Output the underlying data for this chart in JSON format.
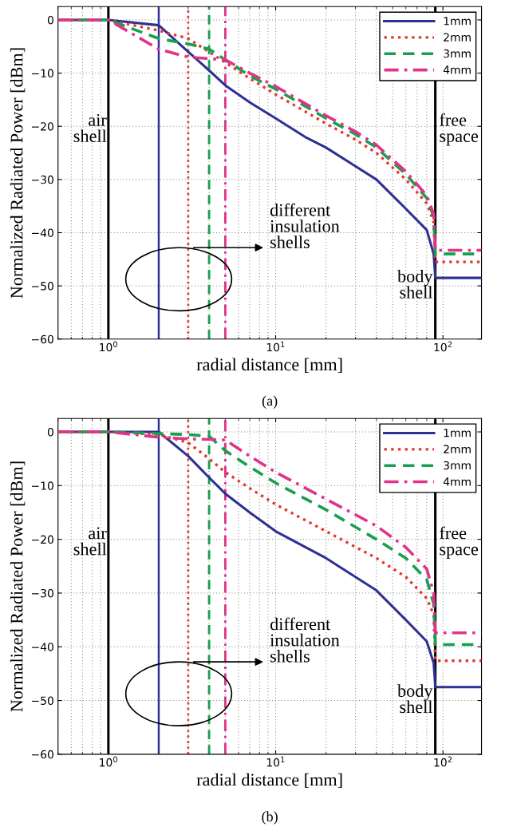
{
  "chart_data": [
    {
      "type": "line",
      "xlabel": "radial distance [mm]",
      "ylabel": "Normalized Radiated Power [dBm]",
      "log": "x",
      "grid": true,
      "legend": "top right",
      "xlim": [
        0.5,
        170
      ],
      "xticks": [
        {
          "value": 1,
          "label": "10$^{0}$"
        },
        {
          "value": 10,
          "label": "10$^{1}$"
        },
        {
          "value": 100,
          "label": "10$^{2}$"
        }
      ],
      "ylim": [
        -60,
        2.5
      ],
      "yticks": [
        -60,
        -50,
        -40,
        -30,
        -20,
        -10,
        0
      ],
      "series": [
        {
          "name": "1mm",
          "color": "#2e3192",
          "line_style": "solid",
          "x": [
            0.5,
            1,
            2,
            3,
            4,
            5,
            7,
            10,
            15,
            20,
            30,
            40,
            60,
            80,
            88,
            90,
            170
          ],
          "values": [
            0,
            0,
            -1,
            -6,
            -9.5,
            -12.3,
            -15.5,
            -18.5,
            -22,
            -24,
            -27.5,
            -30,
            -35.5,
            -39.5,
            -44,
            -48.5,
            -48.5
          ]
        },
        {
          "name": "2mm",
          "color": "#e03a2e",
          "line_style": "dotted",
          "x": [
            0.5,
            1,
            2,
            3,
            5,
            7,
            10,
            20,
            30,
            40,
            60,
            80,
            88,
            90,
            170
          ],
          "values": [
            0,
            0,
            -2,
            -3.5,
            -8,
            -11,
            -14,
            -19.5,
            -22.5,
            -25,
            -30,
            -34.5,
            -38,
            -45.5,
            -45.5
          ]
        },
        {
          "name": "3mm",
          "color": "#17a050",
          "line_style": "dashed",
          "x": [
            0.5,
            1,
            2,
            3,
            4,
            5,
            7,
            10,
            20,
            30,
            40,
            60,
            80,
            88,
            90,
            170
          ],
          "values": [
            0,
            0,
            -3.5,
            -4.5,
            -5.5,
            -7.5,
            -10.5,
            -13,
            -18.5,
            -21.5,
            -24,
            -29,
            -33.5,
            -37,
            -44,
            -44
          ]
        },
        {
          "name": "4mm",
          "color": "#e0338a",
          "line_style": "dashdot",
          "x": [
            0.5,
            1,
            2,
            3,
            5,
            7,
            10,
            20,
            30,
            40,
            60,
            80,
            88,
            90,
            170
          ],
          "values": [
            0,
            0,
            -5.5,
            -7,
            -7.5,
            -10,
            -12.5,
            -18,
            -21,
            -23.5,
            -28.5,
            -33,
            -36.5,
            -43.3,
            -43.3
          ]
        }
      ],
      "ref_lines": [
        {
          "axis": "x",
          "value": 1,
          "color": "#000000",
          "line_style": "solid"
        },
        {
          "axis": "x",
          "value": 90,
          "color": "#000000",
          "line_style": "solid"
        },
        {
          "axis": "x",
          "value": 2,
          "color": "#2e3192",
          "line_style": "solid"
        },
        {
          "axis": "x",
          "value": 3,
          "color": "#e03a2e",
          "line_style": "dotted"
        },
        {
          "axis": "x",
          "value": 4,
          "color": "#17a050",
          "line_style": "dashed"
        },
        {
          "axis": "x",
          "value": 5,
          "color": "#e0338a",
          "line_style": "dashdot"
        }
      ],
      "annotations": [
        "air\nshell",
        "free\nspace",
        "body\nshell",
        "different\ninsulation\nshells",
        "(a)"
      ]
    },
    {
      "type": "line",
      "xlabel": "radial distance [mm]",
      "ylabel": "Normalized Radiated Power [dBm]",
      "log": "x",
      "grid": true,
      "legend": "top right",
      "xlim": [
        0.5,
        170
      ],
      "xticks": [
        {
          "value": 1,
          "label": "10$^{0}$"
        },
        {
          "value": 10,
          "label": "10$^{1}$"
        },
        {
          "value": 100,
          "label": "10$^{2}$"
        }
      ],
      "ylim": [
        -60,
        2.5
      ],
      "yticks": [
        -60,
        -50,
        -40,
        -30,
        -20,
        -10,
        0
      ],
      "series": [
        {
          "name": "1mm",
          "color": "#2e3192",
          "line_style": "solid",
          "x": [
            0.5,
            1,
            2,
            3,
            4,
            5,
            7,
            10,
            20,
            40,
            60,
            80,
            88,
            90,
            170
          ],
          "values": [
            0,
            0,
            0,
            -4.5,
            -8.5,
            -11.5,
            -15,
            -18.5,
            -23.5,
            -29.5,
            -35,
            -39,
            -43,
            -47.5,
            -47.5
          ]
        },
        {
          "name": "2mm",
          "color": "#e03a2e",
          "line_style": "dotted",
          "x": [
            0.5,
            1,
            2,
            3,
            4,
            5,
            7,
            10,
            20,
            40,
            60,
            80,
            88,
            90,
            170
          ],
          "values": [
            0,
            0,
            -0.5,
            -2,
            -5,
            -7.5,
            -10.5,
            -13.5,
            -18.5,
            -23.5,
            -27,
            -31,
            -34,
            -42.6,
            -42.6
          ]
        },
        {
          "name": "3mm",
          "color": "#17a050",
          "line_style": "dashed",
          "x": [
            0.5,
            1,
            2,
            3,
            4,
            5,
            7,
            10,
            20,
            40,
            60,
            80,
            88,
            90,
            170
          ],
          "values": [
            0,
            0,
            -0.3,
            -0.5,
            -0.8,
            -3.5,
            -6.5,
            -9.5,
            -14.5,
            -20,
            -23.5,
            -27.5,
            -32,
            -39.6,
            -39.6
          ]
        },
        {
          "name": "4mm",
          "color": "#e0338a",
          "line_style": "dashdot",
          "x": [
            0.5,
            1,
            2,
            3,
            5,
            7,
            10,
            20,
            40,
            60,
            80,
            88,
            90,
            170
          ],
          "values": [
            0,
            0,
            -1,
            -1.3,
            -1.5,
            -4.5,
            -7.5,
            -12.5,
            -17.5,
            -21.5,
            -25.5,
            -30,
            -37.4,
            -37.4
          ]
        }
      ],
      "ref_lines": [
        {
          "axis": "x",
          "value": 1,
          "color": "#000000",
          "line_style": "solid"
        },
        {
          "axis": "x",
          "value": 90,
          "color": "#000000",
          "line_style": "solid"
        },
        {
          "axis": "x",
          "value": 2,
          "color": "#2e3192",
          "line_style": "solid"
        },
        {
          "axis": "x",
          "value": 3,
          "color": "#e03a2e",
          "line_style": "dotted"
        },
        {
          "axis": "x",
          "value": 4,
          "color": "#17a050",
          "line_style": "dashed"
        },
        {
          "axis": "x",
          "value": 5,
          "color": "#e0338a",
          "line_style": "dashdot"
        }
      ],
      "annotations": [
        "air\nshell",
        "free\nspace",
        "body\nshell",
        "different\ninsulation\nshells",
        "(b)"
      ]
    }
  ]
}
